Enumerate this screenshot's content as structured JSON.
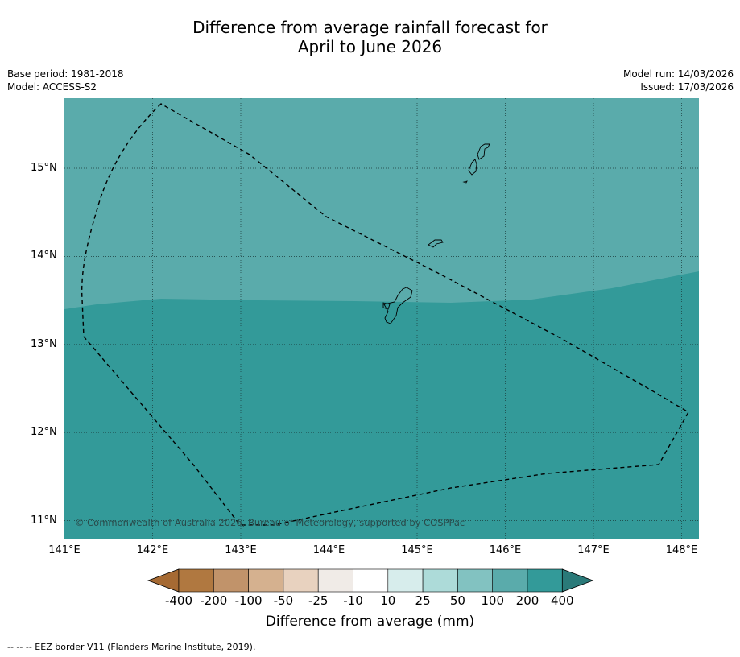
{
  "header": {
    "title_line1": "Difference from average rainfall forecast for",
    "title_line2": "April to June 2026",
    "base_period": "Base period: 1981-2018",
    "model": "Model: ACCESS-S2",
    "model_run": "Model run: 14/03/2026",
    "issued": "Issued: 17/03/2026"
  },
  "map": {
    "lon_ticks": [
      "141°E",
      "142°E",
      "143°E",
      "144°E",
      "145°E",
      "146°E",
      "147°E",
      "148°E"
    ],
    "lat_ticks": [
      "15°N",
      "14°N",
      "13°N",
      "12°N",
      "11°N"
    ],
    "copyright": "© Commonwealth of Australia 2026, Bureau of Meteorology, supported by COSPPac",
    "colors": {
      "category_100_200": "#5aabab",
      "category_200_400": "#339a99",
      "land_outline": "#000000",
      "eez_border": "#000000"
    }
  },
  "colorbar": {
    "labels": [
      "-400",
      "-200",
      "-100",
      "-50",
      "-25",
      "-10",
      "10",
      "25",
      "50",
      "100",
      "200",
      "400"
    ],
    "colors": [
      "#a66a33",
      "#b07840",
      "#c1936a",
      "#d5b18f",
      "#e8d2bf",
      "#f0ebe7",
      "#ffffff",
      "#d7edec",
      "#addbd9",
      "#82c2c1",
      "#5aabab",
      "#339a99",
      "#2a7a79"
    ],
    "title": "Difference from average (mm)"
  },
  "footnote": "--  --  -- EEZ border V11 (Flanders Marine Institute, 2019)."
}
